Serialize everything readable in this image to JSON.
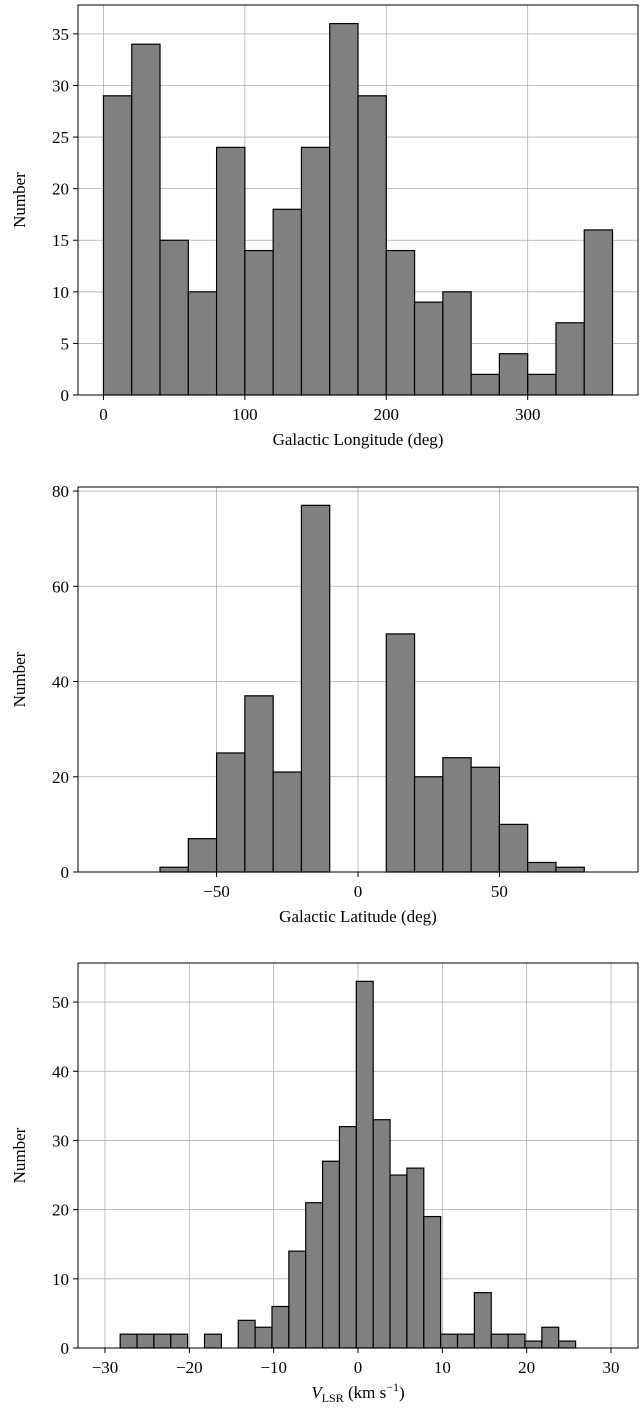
{
  "chart_data": [
    {
      "type": "histogram",
      "xlabel": [
        {
          "text": "Galactic Longitude (deg)",
          "style": "normal"
        }
      ],
      "ylabel": "Number",
      "bins": [
        0,
        20,
        40,
        60,
        80,
        100,
        120,
        140,
        160,
        180,
        200,
        220,
        240,
        260,
        280,
        300,
        320,
        340,
        360
      ],
      "values": [
        29,
        34,
        15,
        10,
        24,
        14,
        18,
        24,
        36,
        29,
        14,
        9,
        10,
        2,
        4,
        2,
        7,
        16
      ],
      "color": "#808080",
      "edgecolor": "#000000",
      "xlim": [
        -18,
        378
      ],
      "ylim": [
        0,
        37.8
      ],
      "xticks": [
        0,
        100,
        200,
        300
      ],
      "yticks": [
        0,
        5,
        10,
        15,
        20,
        25,
        30,
        35
      ],
      "grid": true
    },
    {
      "type": "histogram",
      "xlabel": [
        {
          "text": "Galactic Latitude (deg)",
          "style": "normal"
        }
      ],
      "ylabel": "Number",
      "bins": [
        -90,
        -80,
        -70,
        -60,
        -50,
        -40,
        -30,
        -20,
        -10,
        0,
        10,
        20,
        30,
        40,
        50,
        60,
        70,
        80,
        90
      ],
      "values": [
        0,
        0,
        1,
        7,
        25,
        37,
        21,
        77,
        0,
        0,
        50,
        20,
        24,
        22,
        10,
        2,
        1,
        0
      ],
      "color": "#808080",
      "edgecolor": "#000000",
      "xlim": [
        -99,
        99
      ],
      "ylim": [
        0,
        80.85
      ],
      "xticks": [
        {
          "value": -50,
          "label": "−50"
        },
        0,
        50
      ],
      "yticks": [
        0,
        20,
        40,
        60,
        80
      ],
      "grid": true
    },
    {
      "type": "histogram",
      "xlabel": [
        {
          "text": "V",
          "style": "italic"
        },
        {
          "text": "LSR",
          "style": "sub"
        },
        {
          "text": " (km s",
          "style": "normal"
        },
        {
          "text": "−1",
          "style": "sup"
        },
        {
          "text": ")",
          "style": "normal"
        }
      ],
      "ylabel": "Number",
      "bins": [
        -28.2,
        -26.2,
        -24.2,
        -22.2,
        -20.2,
        -18.2,
        -16.2,
        -14.2,
        -12.2,
        -10.2,
        -8.2,
        -6.2,
        -4.2,
        -2.2,
        -0.2,
        1.8,
        3.8,
        5.8,
        7.8,
        9.8,
        11.8,
        13.8,
        15.8,
        17.8,
        19.8,
        21.8,
        23.8,
        25.8
      ],
      "values": [
        2,
        2,
        2,
        2,
        0,
        2,
        0,
        4,
        3,
        6,
        14,
        21,
        27,
        32,
        53,
        33,
        25,
        26,
        19,
        2,
        2,
        8,
        2,
        2,
        1,
        3,
        1
      ],
      "color": "#808080",
      "edgecolor": "#000000",
      "xlim": [
        -33.2,
        33.2
      ],
      "ylim": [
        0,
        55.65
      ],
      "xticks": [
        {
          "value": -30,
          "label": "−30"
        },
        {
          "value": -20,
          "label": "−20"
        },
        {
          "value": -10,
          "label": "−10"
        },
        0,
        10,
        20,
        30
      ],
      "yticks": [
        0,
        10,
        20,
        30,
        40,
        50
      ],
      "grid": true
    }
  ]
}
